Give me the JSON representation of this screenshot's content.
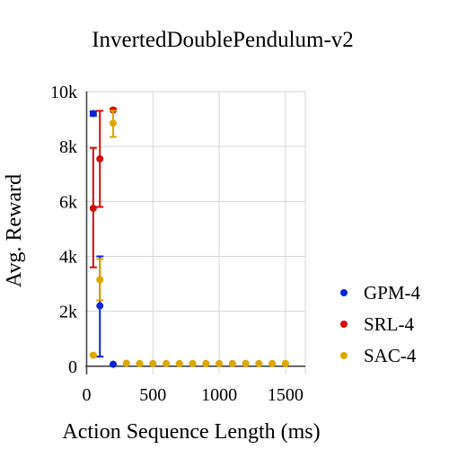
{
  "chart_data": {
    "type": "scatter",
    "title": "InvertedDoublePendulum-v2",
    "xlabel": "Action Sequence Length (ms)",
    "ylabel": "Avg. Reward",
    "xlim": [
      -10,
      1650
    ],
    "ylim": [
      -300,
      10000
    ],
    "x_ticks": [
      0,
      500,
      1000,
      1500
    ],
    "x_tick_labels": [
      "0",
      "500",
      "1000",
      "1500"
    ],
    "y_ticks": [
      0,
      2000,
      4000,
      6000,
      8000,
      10000
    ],
    "y_tick_labels": [
      "0",
      "2k",
      "4k",
      "6k",
      "8k",
      "10k"
    ],
    "grid": true,
    "legend_position": "right",
    "series": [
      {
        "name": "GPM-4",
        "color": "#0a24d6",
        "points": [
          {
            "x": 50,
            "y": 9200,
            "lo": 9120,
            "hi": 9280
          },
          {
            "x": 100,
            "y": 2200,
            "lo": 350,
            "hi": 4000
          },
          {
            "x": 200,
            "y": 70,
            "lo": 60,
            "hi": 80
          }
        ]
      },
      {
        "name": "SRL-4",
        "color": "#d40d0d",
        "points": [
          {
            "x": 50,
            "y": 5750,
            "lo": 3600,
            "hi": 7950
          },
          {
            "x": 100,
            "y": 7550,
            "lo": 5800,
            "hi": 9300
          },
          {
            "x": 200,
            "y": 9330,
            "lo": 9280,
            "hi": 9380
          }
        ]
      },
      {
        "name": "SAC-4",
        "color": "#dca800",
        "points": [
          {
            "x": 50,
            "y": 400,
            "lo": 380,
            "hi": 420
          },
          {
            "x": 100,
            "y": 3150,
            "lo": 2400,
            "hi": 3900
          },
          {
            "x": 200,
            "y": 8850,
            "lo": 8350,
            "hi": 9300
          },
          {
            "x": 300,
            "y": 110,
            "lo": 100,
            "hi": 120
          },
          {
            "x": 400,
            "y": 100,
            "lo": 90,
            "hi": 110
          },
          {
            "x": 500,
            "y": 100,
            "lo": 90,
            "hi": 110
          },
          {
            "x": 600,
            "y": 100,
            "lo": 90,
            "hi": 110
          },
          {
            "x": 700,
            "y": 100,
            "lo": 90,
            "hi": 110
          },
          {
            "x": 800,
            "y": 100,
            "lo": 90,
            "hi": 110
          },
          {
            "x": 900,
            "y": 100,
            "lo": 90,
            "hi": 110
          },
          {
            "x": 1000,
            "y": 100,
            "lo": 90,
            "hi": 110
          },
          {
            "x": 1100,
            "y": 100,
            "lo": 90,
            "hi": 110
          },
          {
            "x": 1200,
            "y": 100,
            "lo": 90,
            "hi": 110
          },
          {
            "x": 1300,
            "y": 100,
            "lo": 90,
            "hi": 110
          },
          {
            "x": 1400,
            "y": 100,
            "lo": 90,
            "hi": 110
          },
          {
            "x": 1500,
            "y": 100,
            "lo": 90,
            "hi": 110
          }
        ]
      }
    ]
  }
}
